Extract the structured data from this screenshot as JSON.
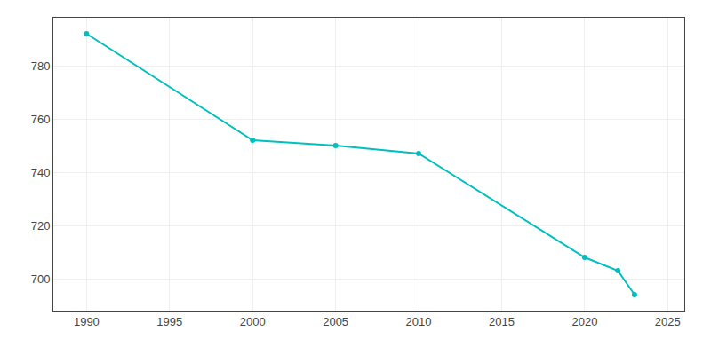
{
  "chart_data": {
    "type": "line",
    "x": [
      1990,
      2000,
      2005,
      2010,
      2020,
      2022,
      2023
    ],
    "values": [
      792,
      752,
      750,
      747,
      708,
      703,
      694
    ],
    "color": "#00BFBF",
    "marker": "circle",
    "xlim": [
      1988,
      2026
    ],
    "ylim": [
      688,
      798
    ],
    "xticks": [
      1990,
      1995,
      2000,
      2005,
      2010,
      2015,
      2020,
      2025
    ],
    "yticks": [
      700,
      720,
      740,
      760,
      780
    ],
    "grid": true
  }
}
